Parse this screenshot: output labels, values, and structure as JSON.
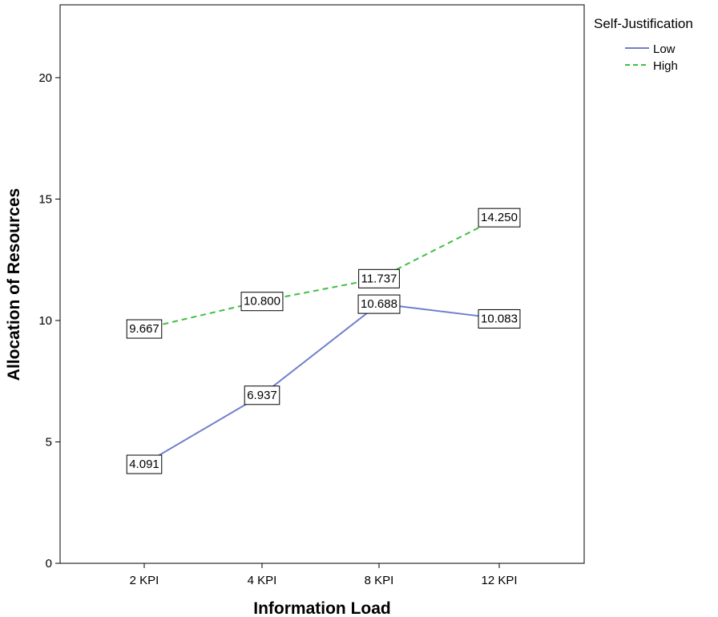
{
  "chart_data": {
    "type": "line",
    "xlabel": "Information Load",
    "ylabel": "Allocation of Resources",
    "categories": [
      "2 KPI",
      "4 KPI",
      "8 KPI",
      "12 KPI"
    ],
    "ylim": [
      0,
      23
    ],
    "yticks": [
      0,
      5,
      10,
      15,
      20
    ],
    "grid": false,
    "legend": {
      "title": "Self-Justification",
      "position": "top-right outside"
    },
    "series": [
      {
        "name": "Low",
        "values": [
          4.091,
          6.937,
          10.688,
          10.083
        ],
        "labels": [
          "4.091",
          "6.937",
          "10.688",
          "10.083"
        ],
        "color": "#6f7fce",
        "style": "solid"
      },
      {
        "name": "High",
        "values": [
          9.667,
          10.8,
          11.737,
          14.25
        ],
        "labels": [
          "9.667",
          "10.800",
          "11.737",
          "14.250"
        ],
        "color": "#3fbf45",
        "style": "dashed"
      }
    ]
  }
}
